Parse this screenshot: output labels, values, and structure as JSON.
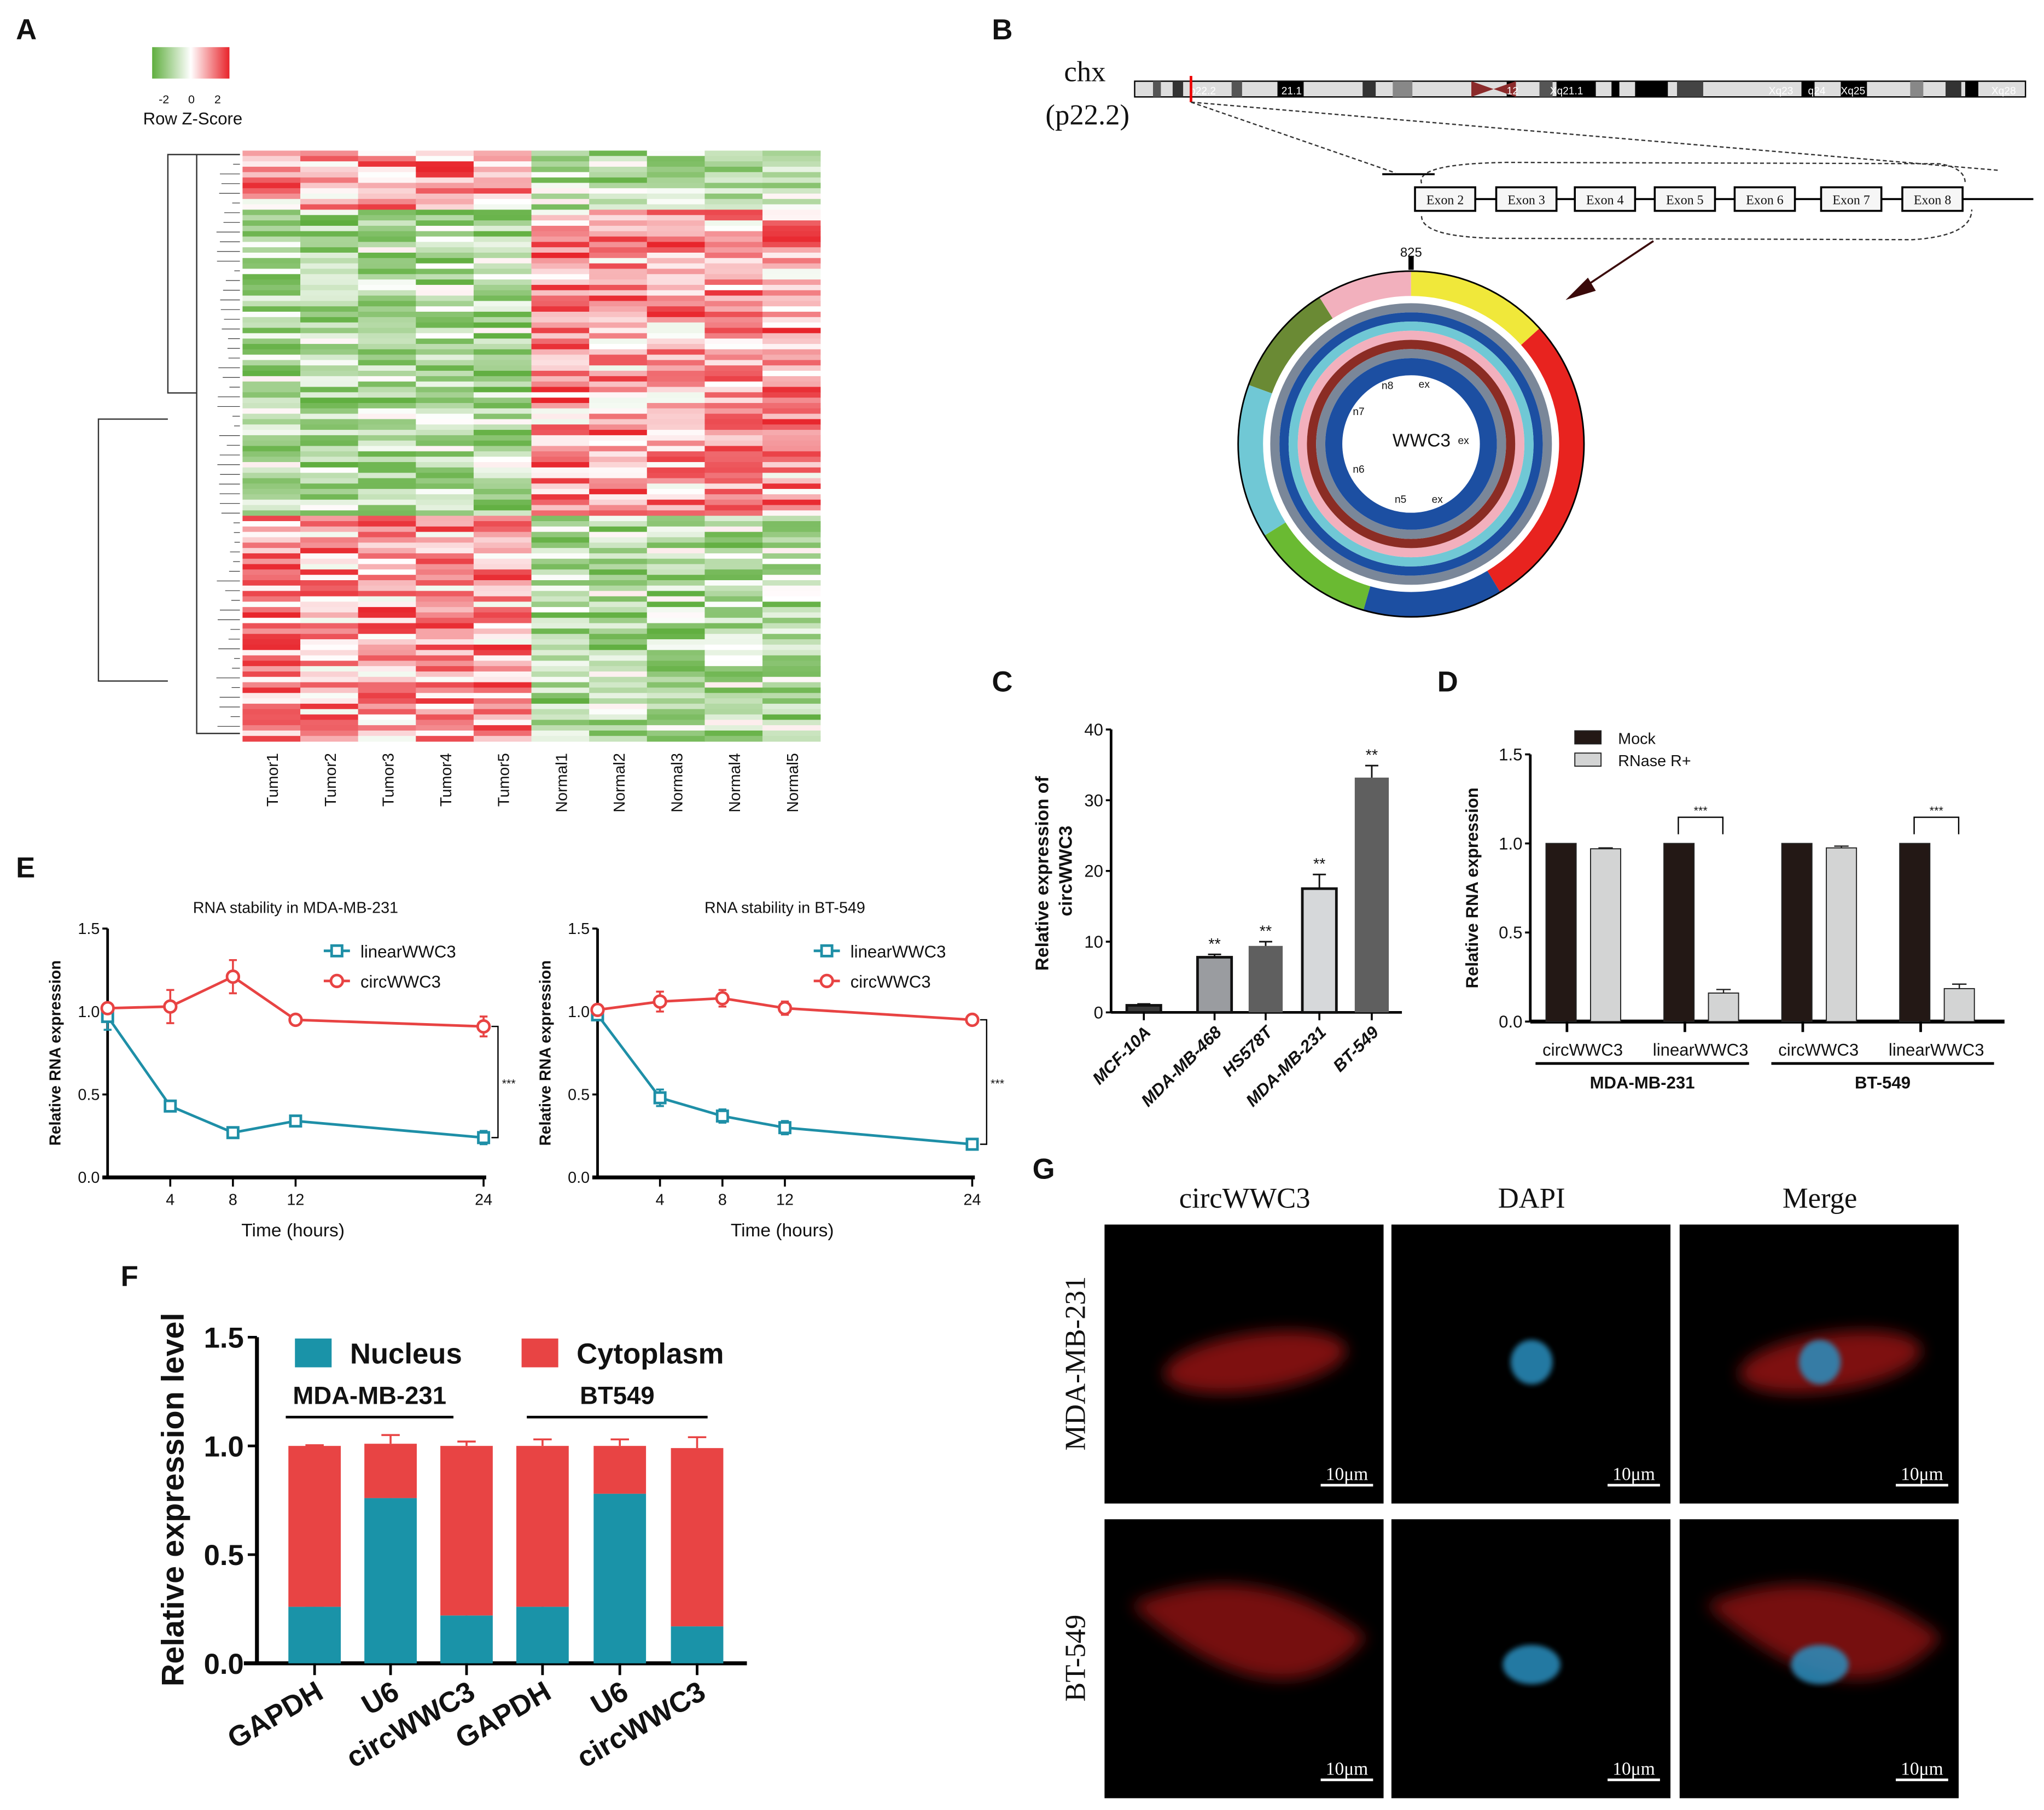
{
  "panels": {
    "A": {
      "label": "A",
      "colorbar_title": "Row Z-Score",
      "colorbar_ticks": [
        "-2",
        "0",
        "2"
      ],
      "columns": [
        "Tumor1",
        "Tumor2",
        "Tumor3",
        "Tumor4",
        "Tumor5",
        "Normal1",
        "Normal2",
        "Normal3",
        "Normal4",
        "Normal5"
      ],
      "colors": {
        "low": "#5fae3e",
        "mid": "#ffffff",
        "high": "#e8232a"
      }
    },
    "B": {
      "label": "B",
      "chromosome": "chx",
      "band": "(p22.2)",
      "bands": [
        "p22.2",
        "21.1",
        "12",
        "Xq21.1",
        "Xq23",
        "q24",
        "Xq25",
        "Xq28"
      ],
      "exons": [
        "Exon 2",
        "Exon 3",
        "Exon 4",
        "Exon 5",
        "Exon 6",
        "Exon 7",
        "Exon 8"
      ],
      "circ_position": "825",
      "circ_name": "WWC3",
      "inner_labels": [
        "n8",
        "ex",
        "n7",
        "ex",
        "n6",
        "n5",
        "ex"
      ]
    },
    "G": {
      "label": "G",
      "columns": [
        "circWWC3",
        "DAPI",
        "Merge"
      ],
      "rows": [
        "MDA-MB-231",
        "BT-549"
      ],
      "scale_bar": "10μm"
    }
  },
  "chart_data": [
    {
      "id": "C",
      "panel_label": "C",
      "type": "bar",
      "title": "",
      "ylabel": "Relative expression of circWWC3",
      "xlabel": "",
      "categories": [
        "MCF-10A",
        "MDA-MB-468",
        "HS578T",
        "MDA-MB-231",
        "BT-549"
      ],
      "values": [
        1.0,
        7.8,
        9.4,
        17.5,
        33.2
      ],
      "errors": [
        0.2,
        0.4,
        0.6,
        2.0,
        1.7
      ],
      "significance": [
        "",
        "**",
        "**",
        "**",
        "**"
      ],
      "bar_colors": [
        "#3a3a3a",
        "#9a9ca0",
        "#5f5f5f",
        "#d6d8da",
        "#5f5f5f"
      ],
      "ylim": [
        0,
        40
      ],
      "yticks": [
        "0",
        "10",
        "20",
        "30",
        "40"
      ]
    },
    {
      "id": "D",
      "panel_label": "D",
      "type": "bar",
      "ylabel": "Relative RNA expression",
      "categories": [
        "circWWC3",
        "linearWWC3",
        "circWWC3",
        "linearWWC3"
      ],
      "groups": [
        "MDA-MB-231",
        "BT-549"
      ],
      "series": [
        {
          "name": "Mock",
          "color": "#231815",
          "values": [
            1.0,
            1.0,
            1.0,
            1.0
          ],
          "errors": [
            0,
            0,
            0,
            0
          ]
        },
        {
          "name": "RNase R+",
          "color": "#d3d4d4",
          "values": [
            0.97,
            0.16,
            0.975,
            0.185
          ],
          "errors": [
            0.005,
            0.02,
            0.01,
            0.025
          ]
        }
      ],
      "significance": [
        "",
        "***",
        "",
        "***"
      ],
      "ylim": [
        0,
        1.5
      ],
      "yticks": [
        "0.0",
        "0.5",
        "1.0",
        "1.5"
      ],
      "legend": "top-left"
    },
    {
      "id": "E1",
      "panel_label": "E",
      "type": "line",
      "title": "RNA stability in MDA-MB-231",
      "xlabel": "Time (hours)",
      "ylabel": "Relative RNA expression",
      "x": [
        0,
        4,
        8,
        12,
        24
      ],
      "xticks": [
        "4",
        "8",
        "12",
        "24"
      ],
      "series": [
        {
          "name": "linearWWC3",
          "color": "#1e8fa7",
          "marker": "square",
          "values": [
            0.97,
            0.43,
            0.27,
            0.34,
            0.24
          ],
          "errors": [
            0.08,
            0.02,
            0.02,
            0.03,
            0.04
          ]
        },
        {
          "name": "circWWC3",
          "color": "#e84343",
          "marker": "circle",
          "values": [
            1.02,
            1.03,
            1.21,
            0.95,
            0.91
          ],
          "errors": [
            0.03,
            0.1,
            0.1,
            0.01,
            0.06
          ]
        }
      ],
      "significance": "***",
      "ylim": [
        0,
        1.5
      ],
      "yticks": [
        "0.0",
        "0.5",
        "1.0",
        "1.5"
      ],
      "legend": "top-right"
    },
    {
      "id": "E2",
      "type": "line",
      "title": "RNA stability in BT-549",
      "xlabel": "Time (hours)",
      "ylabel": "Relative RNA expression",
      "x": [
        0,
        4,
        8,
        12,
        24
      ],
      "xticks": [
        "4",
        "8",
        "12",
        "24"
      ],
      "series": [
        {
          "name": "linearWWC3",
          "color": "#1e8fa7",
          "marker": "square",
          "values": [
            0.98,
            0.48,
            0.37,
            0.3,
            0.2
          ],
          "errors": [
            0.03,
            0.05,
            0.04,
            0.04,
            0.03
          ]
        },
        {
          "name": "circWWC3",
          "color": "#e84343",
          "marker": "circle",
          "values": [
            1.01,
            1.06,
            1.08,
            1.02,
            0.95
          ],
          "errors": [
            0.03,
            0.06,
            0.05,
            0.04,
            0.03
          ]
        }
      ],
      "significance": "***",
      "ylim": [
        0,
        1.5
      ],
      "yticks": [
        "0.0",
        "0.5",
        "1.0",
        "1.5"
      ],
      "legend": "top-right"
    },
    {
      "id": "F",
      "panel_label": "F",
      "type": "bar",
      "stacked": true,
      "ylabel": "Relative expression level",
      "categories": [
        "GAPDH",
        "U6",
        "circWWC3",
        "GAPDH",
        "U6",
        "circWWC3"
      ],
      "groups": [
        "MDA-MB-231",
        "BT549"
      ],
      "series": [
        {
          "name": "Nucleus",
          "color": "#1a93a8",
          "values": [
            0.26,
            0.76,
            0.22,
            0.26,
            0.78,
            0.17
          ],
          "errors": [
            0.005,
            0.04,
            0.01,
            0.015,
            0.01,
            0.03
          ]
        },
        {
          "name": "Cytoplasm",
          "color": "#e84444",
          "values": [
            0.74,
            0.25,
            0.78,
            0.74,
            0.22,
            0.82
          ],
          "errors": [
            0.003,
            0.04,
            0.02,
            0.03,
            0.03,
            0.05
          ]
        }
      ],
      "ylim": [
        0,
        1.5
      ],
      "yticks": [
        "0.0",
        "0.5",
        "1.0",
        "1.5"
      ],
      "legend": "top"
    }
  ]
}
